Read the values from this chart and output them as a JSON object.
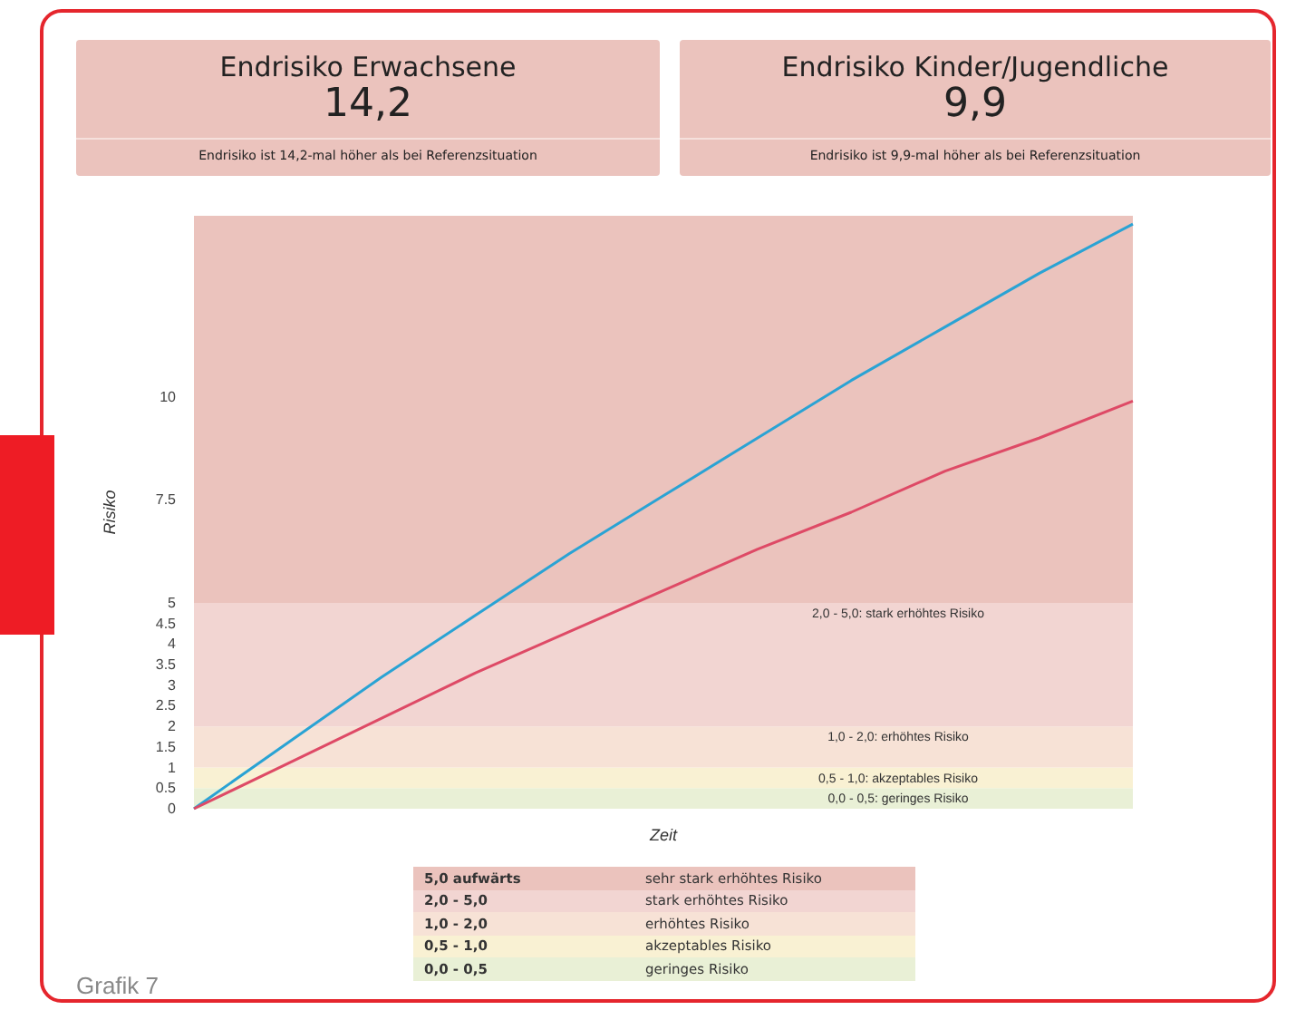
{
  "chart_data": {
    "type": "line",
    "xlabel": "Zeit",
    "ylabel": "Risiko",
    "categories": [
      null,
      null,
      null,
      null,
      null,
      null,
      null,
      null,
      null,
      null,
      null
    ],
    "series": [
      {
        "color": "#2aa3d4",
        "values": [
          0,
          1.6,
          3.2,
          4.7,
          6.2,
          7.6,
          9.0,
          10.4,
          11.7,
          13.0,
          14.2
        ]
      },
      {
        "color": "#de4a66",
        "values": [
          0,
          1.1,
          2.2,
          3.3,
          4.3,
          5.3,
          6.3,
          7.2,
          8.2,
          9.0,
          9.9
        ]
      }
    ],
    "ylim": [
      0,
      14.4
    ],
    "yticks": [
      0,
      0.5,
      1,
      1.5,
      2,
      2.5,
      3,
      3.5,
      4,
      4.5,
      5,
      7.5,
      10
    ],
    "marker": "none",
    "bands": [
      {
        "axis": "y",
        "from": 0,
        "to": 0.5,
        "label": "0,0 - 0,5: geringes Risiko",
        "color": "#e9f0d6"
      },
      {
        "axis": "y",
        "from": 0.5,
        "to": 1,
        "label": "0,5 - 1,0: akzeptables Risiko",
        "color": "#f9f1d3"
      },
      {
        "axis": "y",
        "from": 1,
        "to": 2,
        "label": "1,0 - 2,0: erhöhtes Risiko",
        "color": "#f7e2d6"
      },
      {
        "axis": "y",
        "from": 2,
        "to": 5,
        "label": "2,0 - 5,0: stark erhöhtes Risiko",
        "color": "#f2d5d2"
      },
      {
        "axis": "y",
        "from": 5,
        "to": 14.4,
        "label": null,
        "color": "#ebc3bd"
      }
    ],
    "annotations": [
      "Endrisiko Erwachsene",
      "14,2",
      "Endrisiko ist 14,2-mal höher als bei Referenzsituation",
      "Endrisiko Kinder/Jugendliche",
      "9,9",
      "Endrisiko ist 9,9-mal höher als bei Referenzsituation",
      "5,0 aufwärts",
      "sehr stark erhöhtes Risiko",
      "2,0 - 5,0",
      "stark erhöhtes Risiko",
      "1,0 - 2,0",
      "erhöhtes Risiko",
      "0,5 - 1,0",
      "akzeptables Risiko",
      "0,0 - 0,5",
      "geringes Risiko",
      "Grafik 7"
    ]
  }
}
